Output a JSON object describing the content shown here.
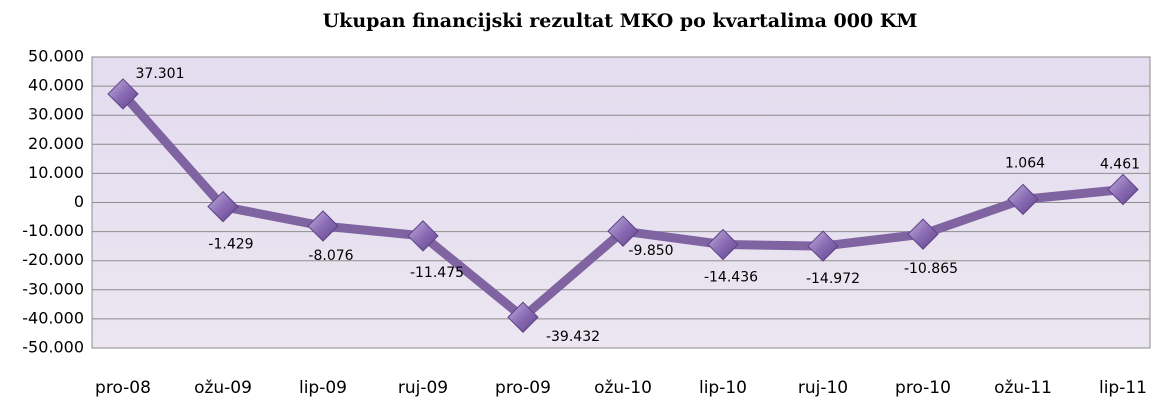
{
  "chart_data": {
    "type": "line",
    "title": "Ukupan financijski rezultat MKO po kvartalima 000 KM",
    "categories": [
      "pro-08",
      "ožu-09",
      "lip-09",
      "ruj-09",
      "pro-09",
      "ožu-10",
      "lip-10",
      "ruj-10",
      "pro-10",
      "ožu-11",
      "lip-11"
    ],
    "series": [
      {
        "color": "#8064a2",
        "values": [
          37301,
          -1429,
          -8076,
          -11475,
          -39432,
          -9850,
          -14436,
          -14972,
          -10865,
          1064,
          4461
        ],
        "value_labels": [
          "37.301",
          "-1.429",
          "-8.076",
          "-11.475",
          "-39.432",
          "-9.850",
          "-14.436",
          "-14.972",
          "-10.865",
          "1.064",
          "4.461"
        ]
      }
    ],
    "ylim": [
      -50000,
      50000
    ],
    "yticks": [
      {
        "value": 50000,
        "label": "50.000"
      },
      {
        "value": 40000,
        "label": "40.000"
      },
      {
        "value": 30000,
        "label": "30.000"
      },
      {
        "value": 20000,
        "label": "20.000"
      },
      {
        "value": 10000,
        "label": "10.000"
      },
      0,
      {
        "value": -10000,
        "label": "-10.000"
      },
      {
        "value": -20000,
        "label": "-20.000"
      },
      {
        "value": -30000,
        "label": "-30.000"
      },
      {
        "value": -40000,
        "label": "-40.000"
      },
      {
        "value": -50000,
        "label": "-50.000"
      }
    ],
    "grid": true
  }
}
